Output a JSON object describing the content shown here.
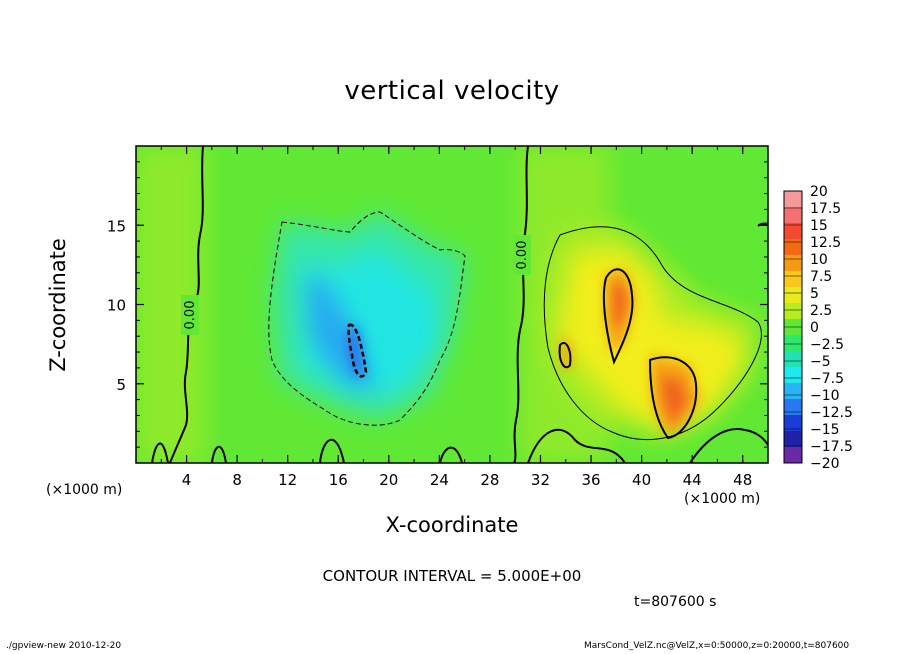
{
  "chart_data": {
    "type": "heatmap",
    "title": "vertical velocity",
    "xlabel": "X-coordinate",
    "ylabel": "Z-coordinate",
    "x_unit": "(×1000 m)",
    "z_unit": "(×1000 m)",
    "xlim": [
      0,
      50
    ],
    "ylim": [
      0,
      20
    ],
    "x_ticks": [
      4,
      8,
      12,
      16,
      20,
      24,
      28,
      32,
      36,
      40,
      44,
      48
    ],
    "y_ticks": [
      5,
      10,
      15
    ],
    "colorbar": {
      "levels": [
        "20",
        "17.5",
        "15",
        "12.5",
        "10",
        "7.5",
        "5",
        "2.5",
        "0",
        "−2.5",
        "−5",
        "−7.5",
        "−10",
        "−12.5",
        "−15",
        "−17.5",
        "−20"
      ],
      "colors": [
        "#f49a9a",
        "#f57070",
        "#f44a2f",
        "#f26a14",
        "#f59a14",
        "#f8c81a",
        "#e9e91f",
        "#b8ec22",
        "#5fe83a",
        "#2ee86a",
        "#22e2b4",
        "#20e8f0",
        "#28b4f5",
        "#2878f0",
        "#1c3cd8",
        "#2020a8",
        "#6a2aa8"
      ]
    },
    "contour_interval": "CONTOUR INTERVAL = 5.000E+00",
    "contour_labels": [
      "0.00",
      "0.00"
    ],
    "features": [
      {
        "name": "downdraft",
        "x": 17.5,
        "z": 7.5,
        "value": -10
      },
      {
        "name": "updraft-upper",
        "x": 38,
        "z": 10.5,
        "value": 12
      },
      {
        "name": "updraft-lower",
        "x": 42,
        "z": 4.5,
        "value": 12
      },
      {
        "name": "updraft-left",
        "x": 34,
        "z": 7,
        "value": 7
      }
    ]
  },
  "time_label": "t=807600 s",
  "footer": {
    "left": "./gpview-new  2010-12-20",
    "right": "MarsCond_VelZ.nc@VelZ,x=0:50000,z=0:20000,t=807600"
  }
}
